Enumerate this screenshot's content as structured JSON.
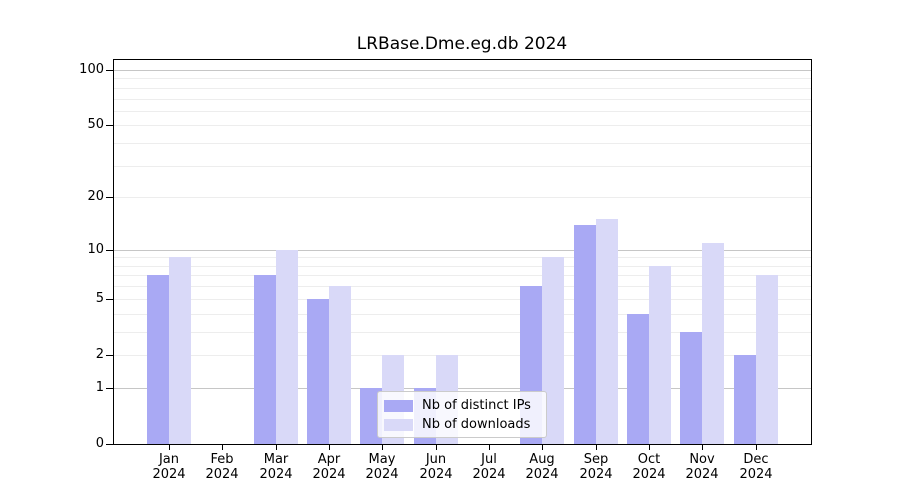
{
  "title": "LRBase.Dme.eg.db 2024",
  "colors": {
    "distinct_ips": "#a9a9f4",
    "downloads": "#d9d9f8",
    "grid_major": "#c6c6c6",
    "grid_minor": "#ededed",
    "axis": "#000000",
    "background": "#ffffff",
    "legend_border": "#cbcbcb"
  },
  "legend": {
    "position": "lower center",
    "items": [
      {
        "label": "Nb of distinct IPs",
        "series_key": "distinct_ips"
      },
      {
        "label": "Nb of downloads",
        "series_key": "downloads"
      }
    ]
  },
  "chart_data": {
    "type": "bar",
    "title": "LRBase.Dme.eg.db 2024",
    "categories": [
      "Jan",
      "Feb",
      "Mar",
      "Apr",
      "May",
      "Jun",
      "Jul",
      "Aug",
      "Sep",
      "Oct",
      "Nov",
      "Dec"
    ],
    "year": "2024",
    "series": [
      {
        "name": "Nb of distinct IPs",
        "key": "distinct_ips",
        "values": [
          7,
          0,
          7,
          5,
          1,
          1,
          0,
          6,
          14,
          4,
          3,
          2
        ]
      },
      {
        "name": "Nb of downloads",
        "key": "downloads",
        "values": [
          9,
          0,
          10,
          6,
          2,
          2,
          0,
          9,
          15,
          8,
          11,
          7
        ]
      }
    ],
    "xlabel": "",
    "ylabel": "",
    "yscale": "log10(1+x)",
    "ylim": [
      0,
      100
    ],
    "yticks": [
      0,
      1,
      2,
      5,
      10,
      20,
      50,
      100
    ],
    "grid": "horizontal",
    "grid_major_values": [
      1,
      10,
      100
    ],
    "grid_minor_values": [
      2,
      3,
      4,
      5,
      6,
      7,
      8,
      9,
      20,
      30,
      40,
      50,
      60,
      70,
      80,
      90
    ],
    "legend_position": "lower center"
  }
}
